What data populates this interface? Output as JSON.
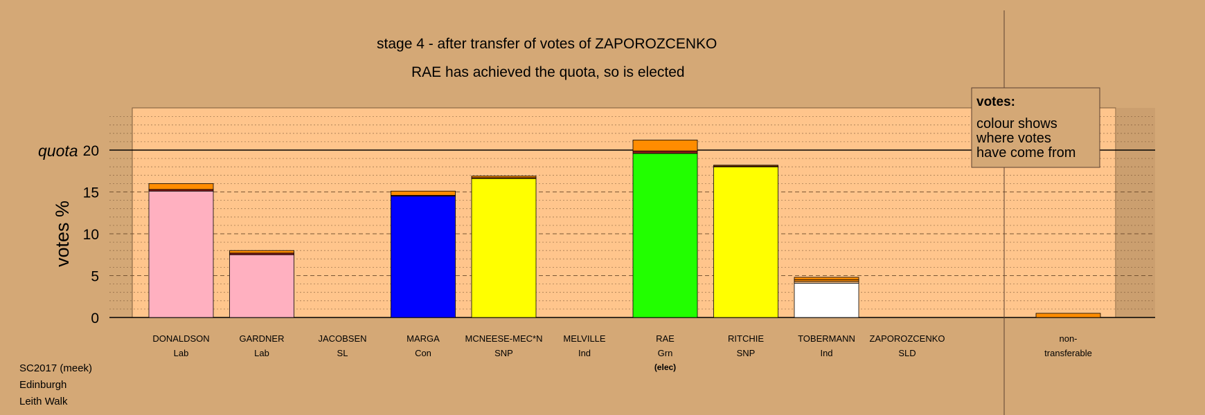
{
  "title": "stage 4 - after transfer of votes of ZAPOROZCENKO",
  "subtitle": "RAE has achieved the quota, so is elected",
  "ylabel": "votes %",
  "quota_label": "quota",
  "footer": [
    "SC2017 (meek)",
    "Edinburgh",
    "Leith Walk"
  ],
  "legend": {
    "title": "votes:",
    "lines": [
      "colour shows",
      "where votes",
      "have come from"
    ]
  },
  "colors": {
    "background": "#d4a876",
    "plot_bg": "#ffc58c",
    "transfer": "#ff8c00",
    "Lab": "#ffb0c0",
    "Con": "#0000ff",
    "SNP": "#ffff00",
    "Grn": "#22ff00",
    "Ind": "#ffffff"
  },
  "chart_data": {
    "type": "bar",
    "stacked": true,
    "ylim": [
      0,
      25
    ],
    "yticks": [
      0,
      5,
      10,
      15,
      20
    ],
    "quota": 20,
    "grid": "dotted every 1, dashed every 5",
    "legend_position": "top-right",
    "categories": [
      {
        "name": "DONALDSON",
        "party": "Lab",
        "note": "",
        "segments": [
          {
            "source": "own",
            "color": "#ffb0c0",
            "value": 15.1
          },
          {
            "source": "other",
            "color": "#8b1a1a",
            "value": 0.2
          },
          {
            "source": "transfer",
            "color": "#ff8c00",
            "value": 0.7
          }
        ]
      },
      {
        "name": "GARDNER",
        "party": "Lab",
        "note": "",
        "segments": [
          {
            "source": "own",
            "color": "#ffb0c0",
            "value": 7.5
          },
          {
            "source": "other",
            "color": "#8b1a1a",
            "value": 0.2
          },
          {
            "source": "transfer",
            "color": "#ff8c00",
            "value": 0.3
          }
        ]
      },
      {
        "name": "JACOBSEN",
        "party": "SL",
        "note": "",
        "segments": []
      },
      {
        "name": "MARGA",
        "party": "Con",
        "note": "",
        "segments": [
          {
            "source": "own",
            "color": "#0000ff",
            "value": 14.5
          },
          {
            "source": "other",
            "color": "#8b1a1a",
            "value": 0.1
          },
          {
            "source": "transfer",
            "color": "#ff8c00",
            "value": 0.5
          }
        ]
      },
      {
        "name": "MCNEESE-MEC*N",
        "party": "SNP",
        "note": "",
        "segments": [
          {
            "source": "own",
            "color": "#ffff00",
            "value": 16.6
          },
          {
            "source": "other",
            "color": "#8b1a1a",
            "value": 0.1
          },
          {
            "source": "transfer",
            "color": "#ff8c00",
            "value": 0.2
          }
        ]
      },
      {
        "name": "MELVILLE",
        "party": "Ind",
        "note": "",
        "segments": []
      },
      {
        "name": "RAE",
        "party": "Grn",
        "note": "(elec)",
        "segments": [
          {
            "source": "own",
            "color": "#22ff00",
            "value": 19.6
          },
          {
            "source": "other",
            "color": "#8b1a1a",
            "value": 0.3
          },
          {
            "source": "transfer",
            "color": "#ff8c00",
            "value": 1.3
          }
        ]
      },
      {
        "name": "RITCHIE",
        "party": "SNP",
        "note": "",
        "segments": [
          {
            "source": "own",
            "color": "#ffff00",
            "value": 18.0
          },
          {
            "source": "other",
            "color": "#8b1a1a",
            "value": 0.1
          },
          {
            "source": "transfer",
            "color": "#ff8c00",
            "value": 0.1
          }
        ]
      },
      {
        "name": "TOBERMANN",
        "party": "Ind",
        "note": "",
        "segments": [
          {
            "source": "own",
            "color": "#ffffff",
            "value": 4.1
          },
          {
            "source": "other",
            "color": "#ffc58c",
            "value": 0.2
          },
          {
            "source": "other2",
            "color": "#ff8c00",
            "value": 0.2
          },
          {
            "source": "transfer",
            "color": "#ff8c00",
            "value": 0.3
          }
        ]
      },
      {
        "name": "ZAPOROZCENKO",
        "party": "SLD",
        "note": "",
        "segments": []
      }
    ],
    "nontransferable": {
      "label": [
        "non-",
        "transferable"
      ],
      "value": 0.5
    }
  }
}
